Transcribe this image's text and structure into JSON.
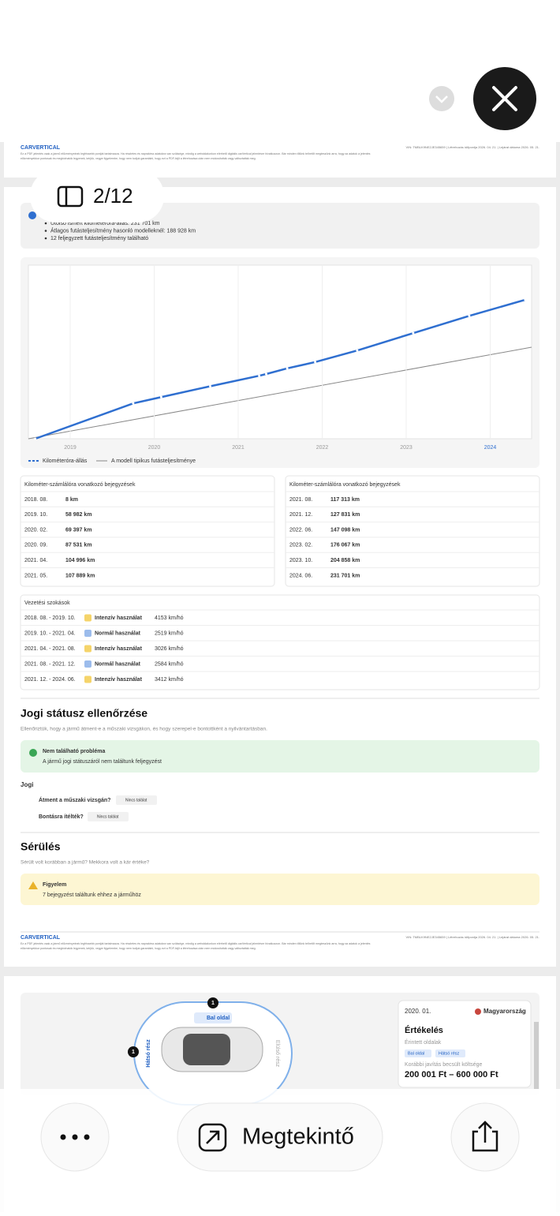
{
  "viewer": {
    "page_indicator": "2/12",
    "open_button": "Megtekintő"
  },
  "prev_footer": {
    "brand": "CARVERTICAL",
    "vin_line": "VIN: TMBLK9NE2JE345659  |  Létrehozás időpontja 2026. 04. 21.  |  Lejárat dátuma 2026. 05. 21.",
    "disclaimer_1": "Ez a PDF-jelentés csak a jármű előzményeinek legfrissebb pontját tartalmazza. Ha részletes és naprakész adatokra van szüksége, mindig a weboldalunkon elérhető digitális carVertical jelentésre hivatkozzon. Bár minden tőlünk telhetőt megteszünk arra, hogy az adatok a jelentés",
    "disclaimer_2": "előzményekkor pontosak és megbízhatók legyenek, kérjük, vegye figyelembe, hogy nem tudjuk garantálni, hogy ezt a PDF-fájlt a létrehozása után nem módosították vagy változtatták meg."
  },
  "summary": {
    "items": [
      "Utolsó ismert kilométeróra-állás: 231 701 km",
      "Átlagos futásteljesítmény hasonló modelleknél: 188 928 km",
      "12 feljegyzett futásteljesítmény található"
    ]
  },
  "mileage_chart": {
    "x_labels": [
      "2019",
      "2020",
      "2021",
      "2022",
      "2023",
      "2024"
    ],
    "legend": [
      "Kilométeróra-állás",
      "A modell tipikus futásteljesítménye"
    ]
  },
  "odometer_tables": [
    {
      "title": "Kilométer-számlálóra vonatkozó bejegyzések",
      "rows": [
        [
          "2018. 08.",
          "8 km"
        ],
        [
          "2019. 10.",
          "58 982 km"
        ],
        [
          "2020. 02.",
          "69 397 km"
        ],
        [
          "2020. 09.",
          "87 531 km"
        ],
        [
          "2021. 04.",
          "104 996 km"
        ],
        [
          "2021. 05.",
          "107 889 km"
        ]
      ]
    },
    {
      "title": "Kilométer-számlálóra vonatkozó bejegyzések",
      "rows": [
        [
          "2021. 08.",
          "117 313 km"
        ],
        [
          "2021. 12.",
          "127 831 km"
        ],
        [
          "2022. 06.",
          "147 098 km"
        ],
        [
          "2023. 02.",
          "176 067 km"
        ],
        [
          "2023. 10.",
          "204 858 km"
        ],
        [
          "2024. 06.",
          "231 701 km"
        ]
      ]
    }
  ],
  "driving_habits": {
    "title": "Vezetési szokások",
    "rows": [
      {
        "period": "2018. 08. - 2019. 10.",
        "label": "Intenzív használat",
        "rate": "4153 km/hó",
        "color": "#f5d46a"
      },
      {
        "period": "2019. 10. - 2021. 04.",
        "label": "Normál használat",
        "rate": "2519 km/hó",
        "color": "#9cbcec"
      },
      {
        "period": "2021. 04. - 2021. 08.",
        "label": "Intenzív használat",
        "rate": "3026 km/hó",
        "color": "#f5d46a"
      },
      {
        "period": "2021. 08. - 2021. 12.",
        "label": "Normál használat",
        "rate": "2584 km/hó",
        "color": "#9cbcec"
      },
      {
        "period": "2021. 12. - 2024. 06.",
        "label": "Intenzív használat",
        "rate": "3412 km/hó",
        "color": "#f5d46a"
      }
    ]
  },
  "legal": {
    "title": "Jogi státusz ellenőrzése",
    "subtitle": "Ellenőriztük, hogy a jármű átment-e a műszaki vizsgákon, és hogy szerepel-e bontottként a nyilvántartásban.",
    "status_title": "Nem található probléma",
    "status_text": "A jármű jogi státuszáról nem találtunk feljegyzést",
    "section": "Jogi",
    "checks": [
      {
        "question": "Átment a műszaki vizsgán?",
        "result": "Nincs találat"
      },
      {
        "question": "Bontásra ítélték?",
        "result": "Nincs találat"
      }
    ]
  },
  "damage": {
    "title": "Sérülés",
    "subtitle": "Sérült volt korábban a jármű? Mekkora volt a kár értéke?",
    "warning_title": "Figyelem",
    "warning_text": "7 bejegyzést találtunk ehhez a járműhöz"
  },
  "footer": {
    "brand": "CARVERTICAL",
    "vin_line": "VIN: TMBLK9NE2JE345659  |  Létrehozás időpontja 2026. 04. 21.  |  Lejárat dátuma 2026. 05. 21.",
    "disclaimer_1": "Ez a PDF-jelentés csak a jármű előzményeinek legfrissebb pontját tartalmazza. Ha részletes és naprakész adatokra van szüksége, mindig a weboldalunkon elérhető digitális carVertical jelentésre hivatkozzon. Bár minden tőlünk telhetőt megteszünk arra, hogy az adatok a jelentés",
    "disclaimer_2": "előzményekkor pontosak és megbízhatók legyenek, kérjük, vegye figyelembe, hogy nem tudjuk garantálni, hogy ezt a PDF-fájlt a létrehozása után nem módosították vagy változtatták meg."
  },
  "damage_detail": {
    "left_label": "Bal oldal",
    "rear_label": "Hátsó rész",
    "front_label": "Elülső rész",
    "count_left": "1",
    "count_rear": "1",
    "date": "2020. 01.",
    "country": "Magyarország",
    "heading": "Értékelés",
    "sides_label": "Érintett oldalak",
    "sides": [
      "Bal oldal",
      "Hátsó rész"
    ],
    "cost_label": "Korábbi javítás becsült költsége",
    "cost": "200 001 Ft – 600 000 Ft"
  }
}
